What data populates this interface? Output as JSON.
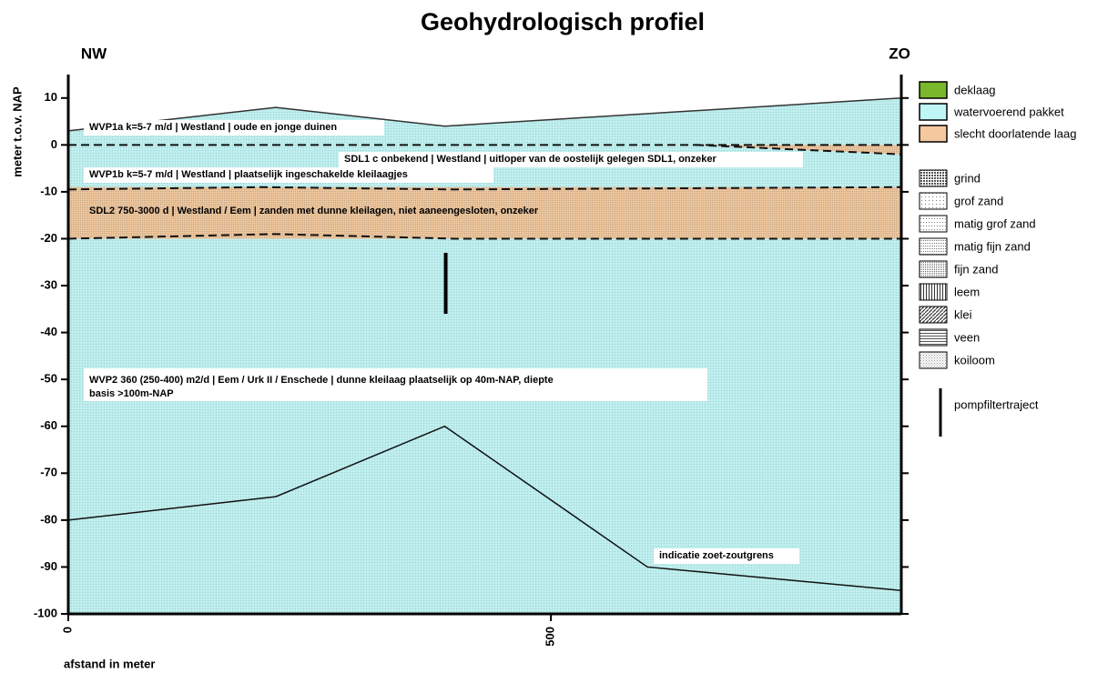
{
  "chart_data": {
    "type": "profile",
    "title": "Geohydrologisch profiel",
    "left_label": "NW",
    "right_label": "ZO",
    "ylabel": "meter t.o.v. NAP",
    "xlabel": "afstand in meter",
    "xlim": [
      0,
      863
    ],
    "ylim": [
      -100,
      15
    ],
    "xticks": [
      0,
      500
    ],
    "yticks": [
      -100,
      -90,
      -80,
      -70,
      -60,
      -50,
      -40,
      -30,
      -20,
      -10,
      0,
      10
    ],
    "surface": {
      "color": "#bfeeee",
      "x": [
        0,
        215,
        390,
        863
      ],
      "y": [
        3,
        8,
        4,
        10
      ]
    },
    "clay_layers": [
      {
        "color": "#f0c79c",
        "x": [
          650,
          863
        ],
        "top": [
          0,
          0
        ],
        "bottom": [
          0,
          -2
        ]
      },
      {
        "color": "#f0c79c",
        "x": [
          0,
          863
        ],
        "top": [
          -9,
          -9
        ],
        "bottom": [
          -20,
          -20
        ]
      }
    ],
    "boundaries": [
      {
        "x": [
          0,
          863
        ],
        "y": [
          0,
          0
        ]
      },
      {
        "x": [
          650,
          863
        ],
        "y": [
          0,
          -2
        ]
      },
      {
        "x": [
          0,
          200,
          400,
          863
        ],
        "y": [
          -9.5,
          -9,
          -9.5,
          -9
        ]
      },
      {
        "x": [
          0,
          215,
          400,
          863
        ],
        "y": [
          -20,
          -19,
          -20,
          -20
        ]
      }
    ],
    "salt_boundary": {
      "x": [
        0,
        215,
        390,
        600,
        863
      ],
      "y": [
        -80,
        -75,
        -60,
        -90,
        -95
      ]
    },
    "filter": {
      "x": 391,
      "y": [
        -23,
        -36
      ]
    },
    "annotations": [
      "WVP1a k=5-7 m/d | Westland | oude en jonge duinen",
      "SDL1 c onbekend | Westland | uitloper van de oostelijk gelegen SDL1, onzeker",
      "WVP1b k=5-7 m/d | Westland | plaatselijk ingeschakelde kleilaagjes",
      "SDL2 750-3000 d | Westland / Eem | zanden met dunne kleilagen, niet aaneengesloten, onzeker",
      "WVP2 360 (250-400) m2/d | Eem / Urk II / Enschede | dunne kleilaag plaatselijk op 40m-NAP, diepte",
      "basis >100m-NAP",
      "indicatie zoet-zoutgrens"
    ],
    "legend": [
      {
        "label": "deklaag",
        "color": "#78b82a"
      },
      {
        "label": "watervoerend pakket",
        "color": "#bff5f5"
      },
      {
        "label": "slecht doorlatende laag",
        "color": "#f5c9a0"
      }
    ],
    "lithology": [
      "grind",
      "grof zand",
      "matig grof zand",
      "matig fijn zand",
      "fijn zand",
      "leem",
      "klei",
      "veen",
      "koiloom"
    ],
    "filter_label": "pompfiltertraject"
  }
}
